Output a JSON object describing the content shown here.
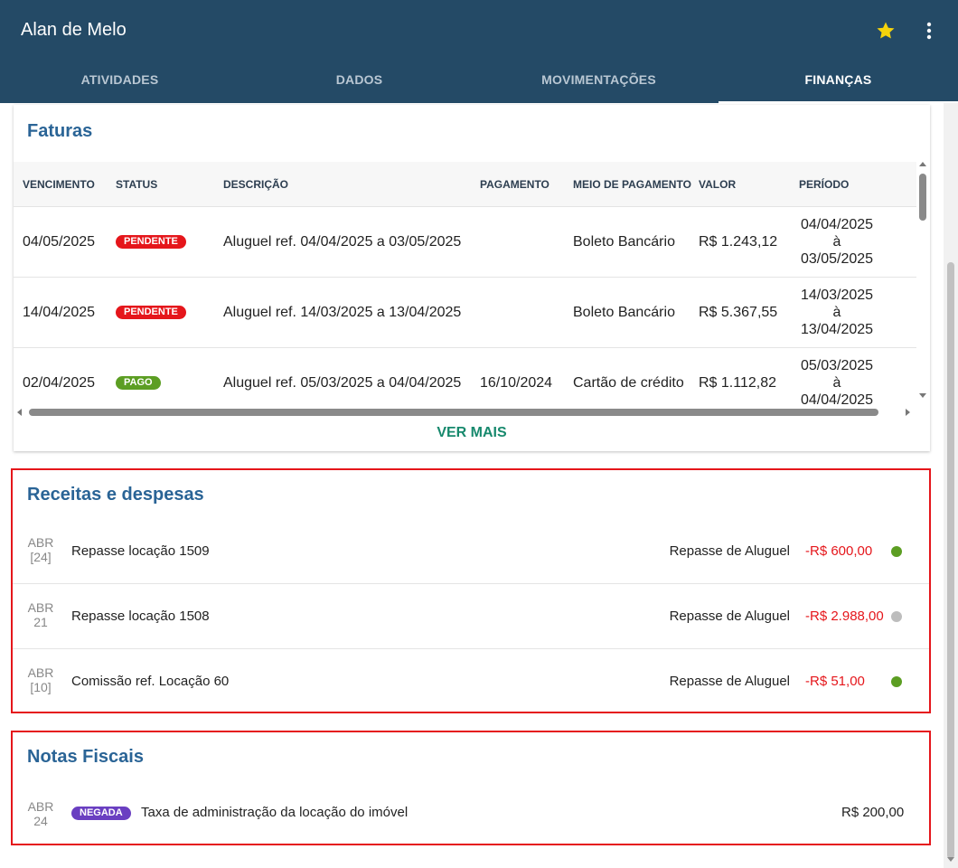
{
  "header": {
    "title": "Alan de Melo",
    "tabs": [
      {
        "label": "ATIVIDADES"
      },
      {
        "label": "DADOS"
      },
      {
        "label": "MOVIMENTAÇÕES"
      },
      {
        "label": "FINANÇAS",
        "active": true
      }
    ],
    "icons": {
      "favorite": "star-icon",
      "menu": "more-vert-icon"
    },
    "colors": {
      "bar": "#244a66",
      "star": "#f5d30c"
    }
  },
  "faturas": {
    "title": "Faturas",
    "columns": [
      "VENCIMENTO",
      "STATUS",
      "DESCRIÇÃO",
      "PAGAMENTO",
      "MEIO DE PAGAMENTO",
      "VALOR",
      "PERÍODO"
    ],
    "rows": [
      {
        "vencimento": "04/05/2025",
        "status": "PENDENTE",
        "descricao": "Aluguel ref. 04/04/2025 a 03/05/2025",
        "pagamento": "",
        "meio": "Boleto Bancário",
        "valor": "R$ 1.243,12",
        "periodo_inicio": "04/04/2025",
        "periodo_sep": "à",
        "periodo_fim": "03/05/2025"
      },
      {
        "vencimento": "14/04/2025",
        "status": "PENDENTE",
        "descricao": "Aluguel ref. 14/03/2025 a 13/04/2025",
        "pagamento": "",
        "meio": "Boleto Bancário",
        "valor": "R$ 5.367,55",
        "periodo_inicio": "14/03/2025",
        "periodo_sep": "à",
        "periodo_fim": "13/04/2025"
      },
      {
        "vencimento": "02/04/2025",
        "status": "PAGO",
        "descricao": "Aluguel ref. 05/03/2025 a 04/04/2025",
        "pagamento": "16/10/2024",
        "meio": "Cartão de crédito",
        "valor": "R$ 1.112,82",
        "periodo_inicio": "05/03/2025",
        "periodo_sep": "à",
        "periodo_fim": "04/04/2025"
      }
    ],
    "status_colors": {
      "PENDENTE": "#e5161b",
      "PAGO": "#5c9e23"
    },
    "ver_mais": "VER MAIS"
  },
  "receitas": {
    "title": "Receitas e despesas",
    "rows": [
      {
        "month": "ABR",
        "day": "[24]",
        "descricao": "Repasse locação 1509",
        "categoria": "Repasse de Aluguel",
        "valor": "-R$ 600,00",
        "dot_color": "#5c9e23"
      },
      {
        "month": "ABR",
        "day": "21",
        "descricao": "Repasse locação 1508",
        "categoria": "Repasse de Aluguel",
        "valor": "-R$ 2.988,00",
        "dot_color": "#bdbdbd"
      },
      {
        "month": "ABR",
        "day": "[10]",
        "descricao": "Comissão ref. Locação 60",
        "categoria": "Repasse de Aluguel",
        "valor": "-R$ 51,00",
        "dot_color": "#5c9e23"
      }
    ]
  },
  "notas": {
    "title": "Notas Fiscais",
    "rows": [
      {
        "month": "ABR",
        "day": "24",
        "status": "NEGADA",
        "descricao": "Taxa de administração da locação do imóvel",
        "valor": "R$ 200,00",
        "status_color": "#6a3fc1"
      }
    ]
  }
}
